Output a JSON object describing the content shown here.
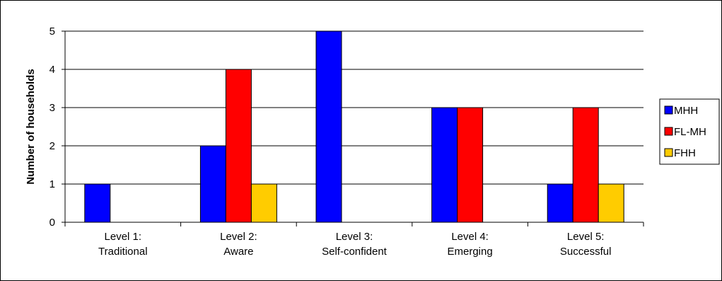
{
  "chart_data": {
    "type": "bar",
    "title": "",
    "xlabel": "",
    "ylabel": "Number of households",
    "ylim": [
      0,
      5
    ],
    "yticks": [
      0,
      1,
      2,
      3,
      4,
      5
    ],
    "grid": true,
    "legend_position": "right",
    "categories": [
      [
        "Level 1:",
        "Traditional"
      ],
      [
        "Level 2:",
        "Aware"
      ],
      [
        "Level 3:",
        "Self-confident"
      ],
      [
        "Level 4:",
        "Emerging"
      ],
      [
        "Level 5:",
        "Successful"
      ]
    ],
    "series": [
      {
        "name": "MHH",
        "color": "#0000ff",
        "values": [
          1,
          2,
          5,
          3,
          1
        ]
      },
      {
        "name": "FL-MH",
        "color": "#ff0000",
        "values": [
          0,
          4,
          0,
          3,
          3
        ]
      },
      {
        "name": "FHH",
        "color": "#ffcc00",
        "values": [
          0,
          1,
          0,
          0,
          1
        ]
      }
    ]
  }
}
